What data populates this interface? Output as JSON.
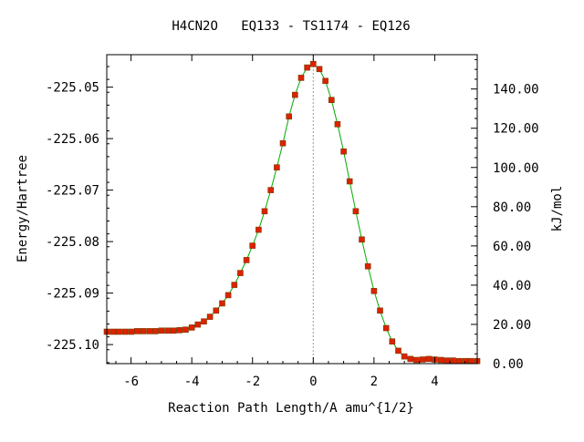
{
  "chart_data": {
    "type": "scatter",
    "title": "H4CN2O   EQ133 - TS1174 - EQ126",
    "xlabel": "Reaction Path Length/A amu^{1/2}",
    "ylabel": "Energy/Hartree",
    "y2label": "kJ/mol",
    "xlim": [
      -6.8,
      5.4
    ],
    "ylim": [
      -225.1037,
      -225.0437
    ],
    "y2lim": [
      0,
      157.5
    ],
    "x_ticks": [
      -6,
      -4,
      -2,
      0,
      2,
      4
    ],
    "x_tick_labels": [
      "-6",
      "-4",
      "-2",
      "0",
      "2",
      "4"
    ],
    "y_ticks": [
      -225.05,
      -225.06,
      -225.07,
      -225.08,
      -225.09,
      -225.1
    ],
    "y_tick_labels": [
      "-225.05",
      "-225.06",
      "-225.07",
      "-225.08",
      "-225.09",
      "-225.10"
    ],
    "y2_ticks": [
      0,
      20,
      40,
      60,
      80,
      100,
      120,
      140
    ],
    "y2_tick_labels": [
      "0.00",
      "20.00",
      "40.00",
      "60.00",
      "80.00",
      "100.00",
      "120.00",
      "140.00"
    ],
    "ts_x": 0,
    "grid": false,
    "colors": {
      "line": "#00aa00",
      "marker": "#dd2200",
      "marker_edge": "#7a3a00",
      "ts_line": "#999999"
    },
    "series": [
      {
        "values": [
          [
            -6.8,
            -225.0975
          ],
          [
            -6.6,
            -225.0975
          ],
          [
            -6.4,
            -225.0975
          ],
          [
            -6.2,
            -225.0975
          ],
          [
            -6.0,
            -225.0975
          ],
          [
            -5.8,
            -225.0974
          ],
          [
            -5.6,
            -225.0974
          ],
          [
            -5.4,
            -225.0974
          ],
          [
            -5.2,
            -225.0974
          ],
          [
            -5.0,
            -225.0973
          ],
          [
            -4.8,
            -225.0973
          ],
          [
            -4.6,
            -225.0973
          ],
          [
            -4.4,
            -225.0972
          ],
          [
            -4.2,
            -225.0971
          ],
          [
            -4.0,
            -225.0967
          ],
          [
            -3.8,
            -225.0961
          ],
          [
            -3.6,
            -225.0955
          ],
          [
            -3.4,
            -225.0946
          ],
          [
            -3.2,
            -225.0934
          ],
          [
            -3.0,
            -225.092
          ],
          [
            -2.8,
            -225.0904
          ],
          [
            -2.6,
            -225.0884
          ],
          [
            -2.4,
            -225.0861
          ],
          [
            -2.2,
            -225.0836
          ],
          [
            -2.0,
            -225.0808
          ],
          [
            -1.8,
            -225.0777
          ],
          [
            -1.6,
            -225.0741
          ],
          [
            -1.4,
            -225.07
          ],
          [
            -1.2,
            -225.0656
          ],
          [
            -1.0,
            -225.0609
          ],
          [
            -0.8,
            -225.0557
          ],
          [
            -0.6,
            -225.0515
          ],
          [
            -0.4,
            -225.0482
          ],
          [
            -0.2,
            -225.0462
          ],
          [
            0.0,
            -225.0455
          ],
          [
            0.2,
            -225.0465
          ],
          [
            0.4,
            -225.0488
          ],
          [
            0.6,
            -225.0525
          ],
          [
            0.8,
            -225.0572
          ],
          [
            1.0,
            -225.0625
          ],
          [
            1.2,
            -225.0683
          ],
          [
            1.4,
            -225.0741
          ],
          [
            1.6,
            -225.0796
          ],
          [
            1.8,
            -225.0848
          ],
          [
            2.0,
            -225.0896
          ],
          [
            2.2,
            -225.0934
          ],
          [
            2.4,
            -225.0968
          ],
          [
            2.6,
            -225.0994
          ],
          [
            2.8,
            -225.1012
          ],
          [
            3.0,
            -225.1023
          ],
          [
            3.2,
            -225.1028
          ],
          [
            3.4,
            -225.103
          ],
          [
            3.6,
            -225.1029
          ],
          [
            3.8,
            -225.1028
          ],
          [
            4.0,
            -225.1029
          ],
          [
            4.2,
            -225.103
          ],
          [
            4.4,
            -225.1031
          ],
          [
            4.6,
            -225.1031
          ],
          [
            4.8,
            -225.1032
          ],
          [
            5.0,
            -225.1032
          ],
          [
            5.2,
            -225.1032
          ],
          [
            5.4,
            -225.1032
          ]
        ]
      }
    ]
  }
}
